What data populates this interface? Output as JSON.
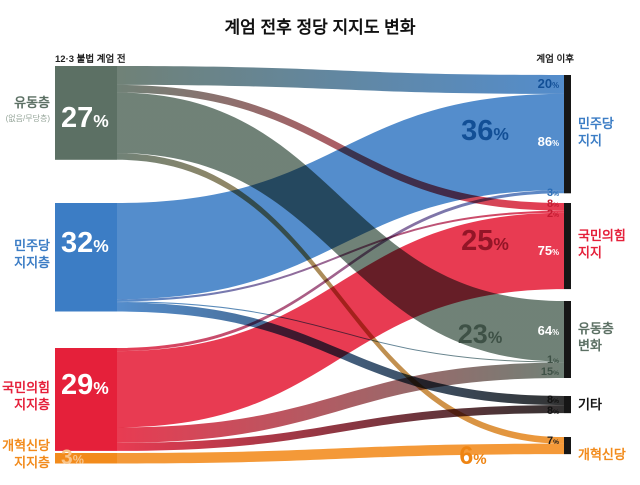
{
  "title": "계엄 전후 정당 지지도 변화",
  "chart_data": {
    "type": "sankey",
    "unit": "%",
    "col_headers": {
      "left": "12·3 불법 계엄 전",
      "right": "계엄 이후"
    },
    "left_nodes": [
      {
        "id": "floating_before",
        "label": "유동층",
        "sublabel": "(없음/무당층)",
        "value": 27,
        "color": "#5c7064",
        "value_text_color": "#ffffff"
      },
      {
        "id": "dem_before",
        "label": "민주당",
        "label2": "지지층",
        "value": 32,
        "color": "#3c7dc5",
        "value_text_color": "#ffffff"
      },
      {
        "id": "ppp_before",
        "label": "국민의힘",
        "label2": "지지층",
        "value": 29,
        "color": "#e5203a",
        "value_text_color": "#ffffff"
      },
      {
        "id": "reform_before",
        "label": "개혁신당",
        "label2": "지지층",
        "value": 3,
        "color": "#f28b1c",
        "value_text_color": "#f8c58c"
      }
    ],
    "right_nodes": [
      {
        "id": "dem_after",
        "label": "민주당",
        "label2": "지지",
        "value": 36,
        "color": "#3c7dc5",
        "value_text_color": "#124f96",
        "bar_color": "#161616"
      },
      {
        "id": "ppp_after",
        "label": "국민의힘",
        "label2": "지지",
        "value": 25,
        "color": "#e5203a",
        "value_text_color": "#931527",
        "bar_color": "#161616"
      },
      {
        "id": "float_after",
        "label": "유동층",
        "label2": "변화",
        "value": 23,
        "color": "#5c7064",
        "value_text_color": "#3e5146",
        "bar_color": "#161616"
      },
      {
        "id": "etc_after",
        "label": "기타",
        "value": null,
        "color": "#161616",
        "bar_color": "#161616"
      },
      {
        "id": "reform_after",
        "label": "개혁신당",
        "value": 6,
        "color": "#f28b1c",
        "value_text_color": "#ee8412",
        "bar_color": "#161616"
      }
    ],
    "flows": [
      {
        "from": "floating_before",
        "to": "dem_after",
        "size": 5.4,
        "label": "20%",
        "label_color": "#124f96"
      },
      {
        "from": "floating_before",
        "to": "ppp_after",
        "size": 2.2,
        "label": "8%",
        "label_color": "#c31b31"
      },
      {
        "from": "floating_before",
        "to": "float_after",
        "size": 17.3,
        "label": "64%",
        "label_color": "#ffffff"
      },
      {
        "from": "floating_before",
        "to": "reform_after",
        "size": 1.9,
        "label": "7%",
        "label_color": "#1a1a1a"
      },
      {
        "from": "dem_before",
        "to": "dem_after",
        "size": 27.5,
        "label": "86%",
        "label_color": "#ffffff"
      },
      {
        "from": "dem_before",
        "to": "ppp_after",
        "size": 0.6,
        "label": "2%",
        "label_color": "#c31b31"
      },
      {
        "from": "dem_before",
        "to": "float_after",
        "size": 0.3,
        "label": "1%",
        "label_color": "#3e5146"
      },
      {
        "from": "dem_before",
        "to": "etc_after",
        "size": 2.6,
        "label": "8%",
        "label_color": "#111111"
      },
      {
        "from": "ppp_before",
        "to": "dem_after",
        "size": 0.9,
        "label": "3%",
        "label_color": "#2a6cb5"
      },
      {
        "from": "ppp_before",
        "to": "ppp_after",
        "size": 21.8,
        "label": "75%",
        "label_color": "#ffffff"
      },
      {
        "from": "ppp_before",
        "to": "float_after",
        "size": 4.4,
        "label": "15%",
        "label_color": "#3e5146"
      },
      {
        "from": "ppp_before",
        "to": "etc_after",
        "size": 2.3,
        "label": "8%",
        "label_color": "#111111"
      },
      {
        "from": "reform_before",
        "to": "reform_after",
        "size": 3.0,
        "label": "",
        "label_color": ""
      }
    ]
  }
}
